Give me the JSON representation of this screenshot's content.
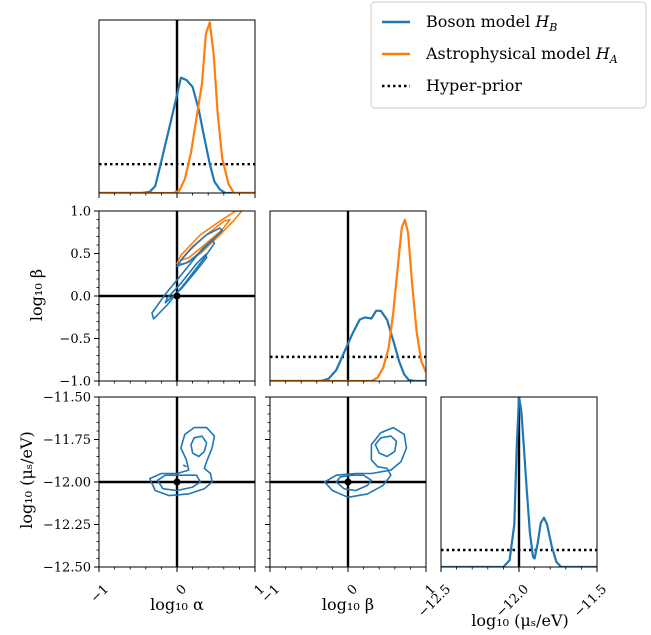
{
  "colors": {
    "boson": "#1f77b4",
    "astro": "#ff7f0e",
    "hyper": "#000000",
    "truth": "#000000"
  },
  "legend": {
    "entries": [
      {
        "label_base": "Boson model ",
        "label_math": "H",
        "label_sub": "B",
        "color": "#1f77b4",
        "style": "solid"
      },
      {
        "label_base": "Astrophysical model ",
        "label_math": "H",
        "label_sub": "A",
        "color": "#ff7f0e",
        "style": "solid"
      },
      {
        "label_base": "Hyper-prior",
        "label_math": "",
        "label_sub": "",
        "color": "#000000",
        "style": "dotted"
      }
    ]
  },
  "chart_data": {
    "type": "corner",
    "parameters": [
      "log10 alpha",
      "log10 beta",
      "log10 mu_s/eV"
    ],
    "truth": {
      "alpha": 0,
      "beta": 0,
      "mu": -12.0
    },
    "panels": {
      "alpha_marginal": {
        "xlim": [
          -1,
          1
        ],
        "boson": [
          [
            -1.0,
            0.0
          ],
          [
            -0.45,
            0.0
          ],
          [
            -0.35,
            0.01
          ],
          [
            -0.28,
            0.06
          ],
          [
            -0.22,
            0.22
          ],
          [
            -0.15,
            0.42
          ],
          [
            -0.08,
            0.62
          ],
          [
            0.0,
            0.85
          ],
          [
            0.05,
            1.0
          ],
          [
            0.12,
            0.98
          ],
          [
            0.2,
            0.92
          ],
          [
            0.28,
            0.72
          ],
          [
            0.35,
            0.48
          ],
          [
            0.42,
            0.25
          ],
          [
            0.48,
            0.1
          ],
          [
            0.55,
            0.03
          ],
          [
            0.62,
            0.0
          ],
          [
            1.0,
            0.0
          ]
        ],
        "astro": [
          [
            -1.0,
            0.0
          ],
          [
            -0.05,
            0.0
          ],
          [
            0.03,
            0.02
          ],
          [
            0.1,
            0.12
          ],
          [
            0.18,
            0.35
          ],
          [
            0.25,
            0.65
          ],
          [
            0.32,
            0.95
          ],
          [
            0.37,
            1.38
          ],
          [
            0.42,
            1.48
          ],
          [
            0.47,
            1.2
          ],
          [
            0.52,
            0.7
          ],
          [
            0.58,
            0.3
          ],
          [
            0.66,
            0.08
          ],
          [
            0.73,
            0.0
          ],
          [
            1.0,
            0.0
          ]
        ],
        "hyper_level": 0.25,
        "ylim": [
          0,
          1.5
        ]
      },
      "beta_marginal": {
        "xlim": [
          -1,
          1
        ],
        "boson": [
          [
            -1.0,
            0.0
          ],
          [
            -0.35,
            0.0
          ],
          [
            -0.25,
            0.02
          ],
          [
            -0.15,
            0.1
          ],
          [
            -0.05,
            0.26
          ],
          [
            0.05,
            0.42
          ],
          [
            0.15,
            0.56
          ],
          [
            0.22,
            0.58
          ],
          [
            0.3,
            0.57
          ],
          [
            0.36,
            0.64
          ],
          [
            0.42,
            0.64
          ],
          [
            0.5,
            0.56
          ],
          [
            0.58,
            0.37
          ],
          [
            0.66,
            0.17
          ],
          [
            0.72,
            0.06
          ],
          [
            0.78,
            0.01
          ],
          [
            0.85,
            0.0
          ],
          [
            1.0,
            0.0
          ]
        ],
        "astro": [
          [
            -1.0,
            0.0
          ],
          [
            0.3,
            0.0
          ],
          [
            0.38,
            0.03
          ],
          [
            0.45,
            0.12
          ],
          [
            0.52,
            0.3
          ],
          [
            0.58,
            0.62
          ],
          [
            0.64,
            1.05
          ],
          [
            0.69,
            1.4
          ],
          [
            0.73,
            1.47
          ],
          [
            0.77,
            1.35
          ],
          [
            0.82,
            0.9
          ],
          [
            0.88,
            0.45
          ],
          [
            0.94,
            0.18
          ],
          [
            1.0,
            0.08
          ]
        ],
        "hyper_level": 0.22,
        "ylim": [
          0,
          1.55
        ]
      },
      "mu_marginal": {
        "xlim": [
          -12.5,
          -11.5
        ],
        "boson": [
          [
            -12.5,
            0.0
          ],
          [
            -12.1,
            0.0
          ],
          [
            -12.06,
            0.04
          ],
          [
            -12.03,
            0.25
          ],
          [
            -12.015,
            0.7
          ],
          [
            -12.0,
            1.0
          ],
          [
            -11.985,
            0.92
          ],
          [
            -11.97,
            0.72
          ],
          [
            -11.95,
            0.45
          ],
          [
            -11.93,
            0.2
          ],
          [
            -11.91,
            0.06
          ],
          [
            -11.9,
            0.05
          ],
          [
            -11.88,
            0.14
          ],
          [
            -11.86,
            0.26
          ],
          [
            -11.84,
            0.29
          ],
          [
            -11.82,
            0.25
          ],
          [
            -11.79,
            0.12
          ],
          [
            -11.76,
            0.03
          ],
          [
            -11.73,
            0.0
          ],
          [
            -11.5,
            0.0
          ]
        ],
        "hyper_level": 0.1,
        "ylim": [
          0,
          1.0
        ]
      },
      "alpha_beta": {
        "xlim": [
          -1,
          1
        ],
        "ylim": [
          -1,
          1
        ],
        "boson_contours": [
          [
            [
              -0.3,
              -0.27
            ],
            [
              -0.32,
              -0.2
            ],
            [
              -0.15,
              0.02
            ],
            [
              0.1,
              0.3
            ],
            [
              0.32,
              0.55
            ],
            [
              0.45,
              0.66
            ],
            [
              0.48,
              0.62
            ],
            [
              0.35,
              0.45
            ],
            [
              0.1,
              0.15
            ],
            [
              -0.12,
              -0.1
            ],
            [
              -0.3,
              -0.27
            ]
          ],
          [
            [
              -0.15,
              -0.08
            ],
            [
              -0.13,
              -0.03
            ],
            [
              0.05,
              0.15
            ],
            [
              0.25,
              0.38
            ],
            [
              0.37,
              0.49
            ],
            [
              0.38,
              0.45
            ],
            [
              0.25,
              0.3
            ],
            [
              0.05,
              0.08
            ],
            [
              -0.15,
              -0.08
            ]
          ],
          [
            [
              0.0,
              0.35
            ],
            [
              0.05,
              0.42
            ],
            [
              0.2,
              0.58
            ],
            [
              0.38,
              0.72
            ],
            [
              0.55,
              0.8
            ],
            [
              0.58,
              0.77
            ],
            [
              0.48,
              0.68
            ],
            [
              0.3,
              0.52
            ],
            [
              0.15,
              0.4
            ],
            [
              0.0,
              0.35
            ]
          ]
        ],
        "astro_contours": [
          [
            [
              0.0,
              0.38
            ],
            [
              0.05,
              0.48
            ],
            [
              0.3,
              0.72
            ],
            [
              0.55,
              0.88
            ],
            [
              0.75,
              1.0
            ],
            [
              0.83,
              1.0
            ],
            [
              0.72,
              0.88
            ],
            [
              0.55,
              0.72
            ],
            [
              0.3,
              0.5
            ],
            [
              0.1,
              0.38
            ],
            [
              0.0,
              0.38
            ]
          ],
          [
            [
              0.05,
              0.42
            ],
            [
              0.12,
              0.5
            ],
            [
              0.35,
              0.7
            ],
            [
              0.6,
              0.88
            ],
            [
              0.68,
              0.9
            ],
            [
              0.58,
              0.78
            ],
            [
              0.35,
              0.6
            ],
            [
              0.15,
              0.45
            ],
            [
              0.05,
              0.42
            ]
          ]
        ]
      },
      "alpha_mu": {
        "xlim": [
          -1,
          1
        ],
        "ylim": [
          -12.5,
          -11.5
        ],
        "boson_contours": [
          [
            [
              -0.35,
              -11.98
            ],
            [
              -0.28,
              -12.05
            ],
            [
              -0.1,
              -12.08
            ],
            [
              0.15,
              -12.07
            ],
            [
              0.35,
              -12.04
            ],
            [
              0.45,
              -12.0
            ],
            [
              0.43,
              -11.95
            ],
            [
              0.35,
              -11.92
            ],
            [
              0.38,
              -11.88
            ],
            [
              0.45,
              -11.8
            ],
            [
              0.48,
              -11.73
            ],
            [
              0.38,
              -11.68
            ],
            [
              0.22,
              -11.68
            ],
            [
              0.1,
              -11.72
            ],
            [
              0.05,
              -11.8
            ],
            [
              0.12,
              -11.87
            ],
            [
              0.15,
              -11.93
            ],
            [
              0.0,
              -11.95
            ],
            [
              -0.2,
              -11.95
            ],
            [
              -0.35,
              -11.98
            ]
          ],
          [
            [
              -0.25,
              -11.99
            ],
            [
              -0.18,
              -12.04
            ],
            [
              0.0,
              -12.05
            ],
            [
              0.2,
              -12.03
            ],
            [
              0.3,
              -12.0
            ],
            [
              0.25,
              -11.96
            ],
            [
              0.05,
              -11.96
            ],
            [
              -0.15,
              -11.96
            ],
            [
              -0.25,
              -11.99
            ]
          ],
          [
            [
              0.18,
              -11.78
            ],
            [
              0.22,
              -11.74
            ],
            [
              0.32,
              -11.73
            ],
            [
              0.38,
              -11.77
            ],
            [
              0.35,
              -11.82
            ],
            [
              0.28,
              -11.85
            ],
            [
              0.2,
              -11.83
            ],
            [
              0.18,
              -11.78
            ]
          ],
          [
            [
              0.08,
              -11.9
            ],
            [
              0.12,
              -11.91
            ]
          ]
        ]
      },
      "beta_mu": {
        "xlim": [
          -1,
          1
        ],
        "ylim": [
          -12.5,
          -11.5
        ],
        "boson_contours": [
          [
            [
              -0.3,
              -12.0
            ],
            [
              -0.2,
              -12.05
            ],
            [
              0.0,
              -12.09
            ],
            [
              0.25,
              -12.07
            ],
            [
              0.45,
              -12.02
            ],
            [
              0.55,
              -11.96
            ],
            [
              0.5,
              -11.92
            ],
            [
              0.38,
              -11.91
            ],
            [
              0.3,
              -11.87
            ],
            [
              0.3,
              -11.78
            ],
            [
              0.42,
              -11.71
            ],
            [
              0.58,
              -11.68
            ],
            [
              0.72,
              -11.72
            ],
            [
              0.75,
              -11.8
            ],
            [
              0.68,
              -11.88
            ],
            [
              0.55,
              -11.93
            ],
            [
              0.3,
              -11.95
            ],
            [
              0.1,
              -11.95
            ],
            [
              -0.15,
              -11.96
            ],
            [
              -0.3,
              -12.0
            ]
          ],
          [
            [
              -0.15,
              -12.0
            ],
            [
              -0.05,
              -12.04
            ],
            [
              0.1,
              -12.05
            ],
            [
              0.25,
              -12.02
            ],
            [
              0.3,
              -11.99
            ],
            [
              0.2,
              -11.96
            ],
            [
              0.05,
              -11.96
            ],
            [
              -0.1,
              -11.97
            ],
            [
              -0.15,
              -12.0
            ]
          ],
          [
            [
              0.35,
              -11.78
            ],
            [
              0.42,
              -11.74
            ],
            [
              0.55,
              -11.73
            ],
            [
              0.62,
              -11.76
            ],
            [
              0.6,
              -11.82
            ],
            [
              0.5,
              -11.85
            ],
            [
              0.4,
              -11.83
            ],
            [
              0.35,
              -11.78
            ]
          ]
        ]
      }
    },
    "ticks": {
      "alpha_x": [
        "−1",
        "0",
        "1"
      ],
      "beta_x": [
        "−1",
        "0",
        "1"
      ],
      "mu_x": [
        "−12.5",
        "−12.0",
        "−11.5"
      ],
      "beta_y": [
        "1.0",
        "0.5",
        "0.0",
        "−0.5",
        "−1.0"
      ],
      "mu_y": [
        "−11.50",
        "−11.75",
        "−12.00",
        "−12.25",
        "−12.50"
      ]
    },
    "axis_labels": {
      "alpha": "log₁₀ α",
      "beta": "log₁₀ β",
      "mu": "log₁₀ (μₛ/eV)"
    }
  }
}
